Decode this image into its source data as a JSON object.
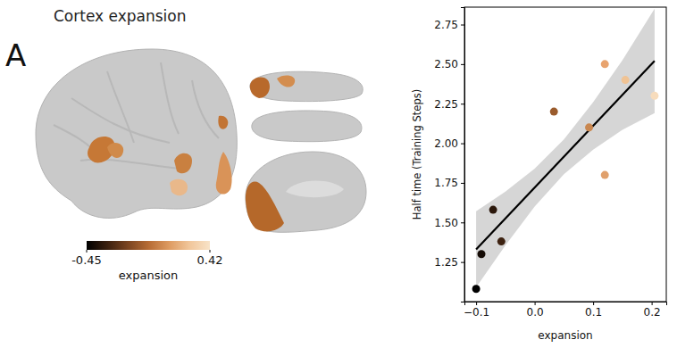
{
  "figure": {
    "panel_label": "A",
    "title": "Cortex expansion",
    "colorbar": {
      "label": "expansion",
      "range": [
        -0.45,
        0.42
      ],
      "ticks": [
        {
          "value": -0.45,
          "label": "-0.45"
        },
        {
          "value": 0.42,
          "label": "0.42"
        }
      ]
    }
  },
  "chart_data": {
    "type": "scatter",
    "x_label": "expansion",
    "y_label": "Half time (Training Steps)",
    "x": [
      -0.1,
      -0.091,
      -0.071,
      -0.057,
      0.033,
      0.093,
      0.12,
      0.12,
      0.155,
      0.205
    ],
    "values": [
      1.08,
      1.3,
      1.58,
      1.38,
      2.2,
      2.1,
      2.5,
      1.8,
      2.4,
      2.3
    ],
    "colors": [
      "#000000",
      "#140a04",
      "#2b170b",
      "#3d2211",
      "#9a5b2c",
      "#c98750",
      "#e8a36e",
      "#e0a06c",
      "#f0c394",
      "#f7dcbc"
    ],
    "fit": {
      "x": [
        -0.1,
        0.205
      ],
      "values": [
        1.33,
        2.52
      ]
    },
    "ci": {
      "x": [
        -0.1,
        -0.05,
        0.0,
        0.05,
        0.1,
        0.15,
        0.205
      ],
      "lower": [
        1.09,
        1.355,
        1.6,
        1.805,
        1.96,
        2.085,
        2.19
      ],
      "upper": [
        1.57,
        1.695,
        1.84,
        2.025,
        2.26,
        2.525,
        2.85
      ]
    },
    "xlim": [
      -0.12,
      0.225
    ],
    "ylim": [
      1.0,
      2.86
    ],
    "xticks": [
      {
        "value": -0.1,
        "label": "−0.1"
      },
      {
        "value": 0.0,
        "label": "0.0"
      },
      {
        "value": 0.1,
        "label": "0.1"
      },
      {
        "value": 0.2,
        "label": "0.2"
      }
    ],
    "yticks": [
      1.25,
      {
        "value": 1.5,
        "label": "1.50"
      },
      1.75,
      {
        "value": 2.0,
        "label": "2.00"
      },
      2.25,
      {
        "value": 2.5,
        "label": "2.50"
      },
      2.75
    ],
    "marker": "circle",
    "line_style": "solid",
    "grid": false
  }
}
